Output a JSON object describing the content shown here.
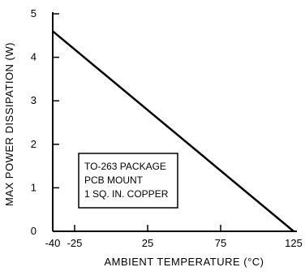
{
  "chart_data": {
    "type": "line",
    "xlabel": "AMBIENT TEMPERATURE (°C)",
    "ylabel": "MAX POWER DISSIPATION (W)",
    "xlim": [
      -40,
      125
    ],
    "ylim": [
      0,
      5
    ],
    "x_ticks": [
      -40,
      -25,
      25,
      75,
      125
    ],
    "y_ticks": [
      0,
      1,
      2,
      3,
      4,
      5
    ],
    "grid": false,
    "series": [
      {
        "x": [
          -40,
          125
        ],
        "y": [
          4.6,
          0
        ]
      }
    ],
    "annotation": {
      "lines": [
        "TO-263 PACKAGE",
        "PCB MOUNT",
        "1 SQ. IN. COPPER"
      ]
    }
  }
}
